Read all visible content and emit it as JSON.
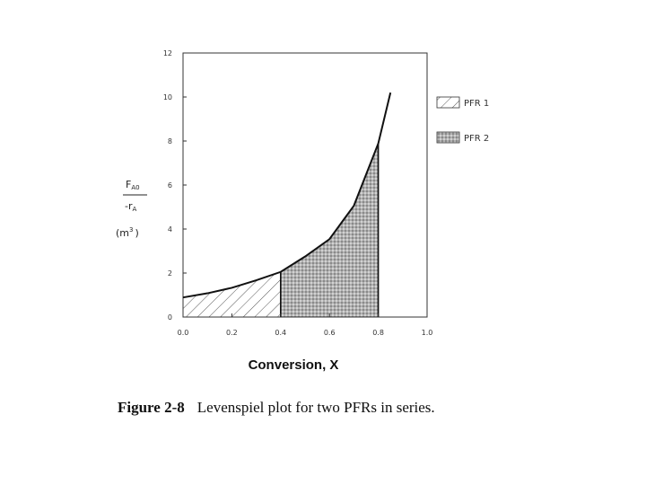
{
  "chart_data": {
    "type": "area",
    "xlabel": "Conversion, X",
    "ylabel": {
      "numerator": "F",
      "numerator_subscript": "A0",
      "denominator": "-r",
      "denominator_subscript": "A",
      "unit": "(m",
      "unit_superscript": "3",
      "unit_close": ")"
    },
    "xlim": [
      0.0,
      1.0
    ],
    "ylim": [
      0,
      12
    ],
    "x_ticks": [
      "0.0",
      "0.2",
      "0.4",
      "0.6",
      "0.8",
      "1.0"
    ],
    "y_ticks": [
      "0",
      "2",
      "4",
      "6",
      "8",
      "10",
      "12"
    ],
    "x_tick_values": [
      0.0,
      0.2,
      0.4,
      0.6,
      0.8,
      1.0
    ],
    "y_tick_values": [
      0,
      2,
      4,
      6,
      8,
      10,
      12
    ],
    "curve": {
      "x": [
        0.0,
        0.1,
        0.2,
        0.3,
        0.4,
        0.5,
        0.6,
        0.7,
        0.8,
        0.85
      ],
      "y": [
        0.89,
        1.08,
        1.33,
        1.67,
        2.05,
        2.75,
        3.54,
        5.06,
        7.89,
        10.2
      ]
    },
    "series": [
      {
        "name": "PFR 1",
        "x_range": [
          0.0,
          0.4
        ]
      },
      {
        "name": "PFR 2",
        "x_range": [
          0.4,
          0.8
        ]
      }
    ],
    "grid": false,
    "legend_position": "right"
  },
  "caption": {
    "number": "Figure 2-8",
    "text": "Levenspiel plot for two PFRs in series."
  },
  "colors": {
    "axis": "#333333",
    "curve": "#111111",
    "pfr1_hatch": "#555555",
    "pfr2_fill": "#9a9a9a"
  }
}
